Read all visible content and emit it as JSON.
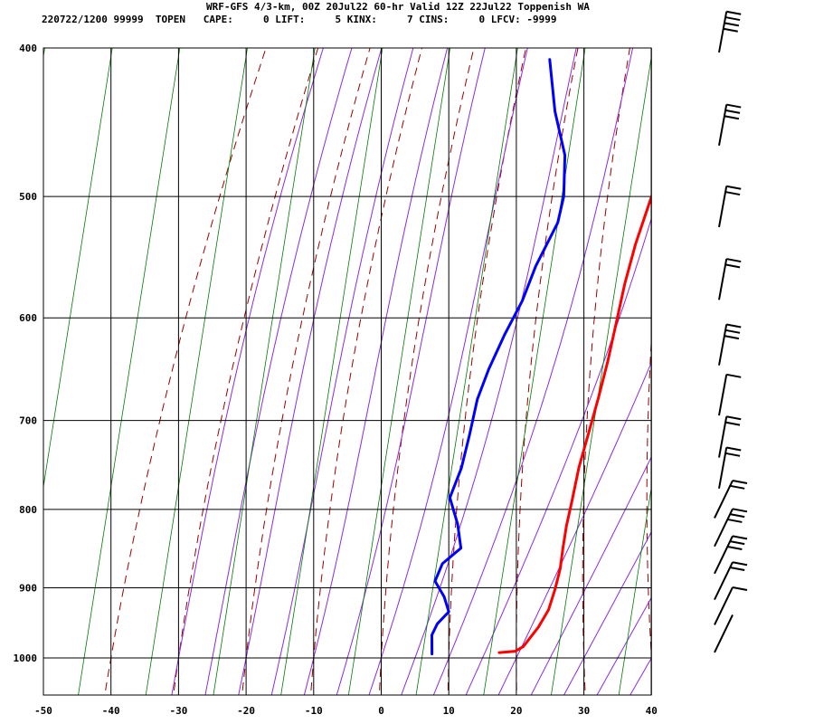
{
  "header": {
    "title": "WRF-GFS 4/3-km, 00Z 20Jul22 60-hr Valid 12Z 22Jul22 Toppenish WA",
    "indices": "220722/1200 99999  TOPEN   CAPE:     0 LIFT:     5 KINX:     7 CINS:     0 LFCV: -9999"
  },
  "chart_data": {
    "type": "line",
    "title": "WRF-GFS 4/3-km, 00Z 20Jul22 60-hr Valid 12Z 22Jul22 Toppenish WA",
    "xlabel": "",
    "ylabel": "",
    "x_ticks": [
      -50,
      -40,
      -30,
      -20,
      -10,
      0,
      10,
      20,
      30,
      40
    ],
    "xlim": [
      -50,
      40
    ],
    "y_ticks": [
      400,
      500,
      600,
      700,
      800,
      900,
      1000
    ],
    "ylim": [
      1040,
      400
    ],
    "y_scale": "log-pressure",
    "grid": true,
    "series": [
      {
        "role": "temperature",
        "color": "#ff0000",
        "points": [
          [
            -26.6,
            405
          ],
          [
            -24,
            440
          ],
          [
            -20.8,
            473
          ],
          [
            -17.6,
            504
          ],
          [
            -14.4,
            537
          ],
          [
            -11,
            570
          ],
          [
            -7.4,
            604
          ],
          [
            -3.8,
            640
          ],
          [
            -0.6,
            676
          ],
          [
            2.4,
            713
          ],
          [
            5.3,
            751
          ],
          [
            8.5,
            790
          ],
          [
            10.8,
            820
          ],
          [
            13.1,
            848
          ],
          [
            15.3,
            875
          ],
          [
            17.1,
            902
          ],
          [
            18.7,
            930
          ],
          [
            19.4,
            955
          ],
          [
            19.6,
            983
          ],
          [
            19,
            990
          ],
          [
            16.8,
            992
          ]
        ]
      },
      {
        "role": "dewpoint",
        "color": "#0000ff",
        "points": [
          [
            -50.3,
            407
          ],
          [
            -43,
            440
          ],
          [
            -36,
            470
          ],
          [
            -31,
            500
          ],
          [
            -28.6,
            520
          ],
          [
            -26.4,
            555
          ],
          [
            -24,
            585
          ],
          [
            -22.4,
            615
          ],
          [
            -20.4,
            648
          ],
          [
            -18.3,
            678
          ],
          [
            -15,
            715
          ],
          [
            -12,
            752
          ],
          [
            -10,
            786
          ],
          [
            -5.5,
            818
          ],
          [
            -2,
            848
          ],
          [
            -2.8,
            868
          ],
          [
            -1.7,
            891
          ],
          [
            1.6,
            912
          ],
          [
            4.2,
            933
          ],
          [
            4,
            950
          ],
          [
            4.6,
            966
          ],
          [
            7,
            994
          ]
        ]
      }
    ],
    "background_lines": {
      "dry_adiabat_color": "#990000",
      "moist_adiabat_color": "#8a2be2",
      "mixing_ratio_color": "#007a00"
    },
    "wind_barbs": {
      "color": "#000000",
      "levels": [
        {
          "pressure": 400,
          "barbs": 4,
          "pennant": false
        },
        {
          "pressure": 460,
          "barbs": 3,
          "pennant": false
        },
        {
          "pressure": 520,
          "barbs": 2,
          "pennant": false
        },
        {
          "pressure": 580,
          "barbs": 2,
          "pennant": false
        },
        {
          "pressure": 640,
          "barbs": 3,
          "pennant": false
        },
        {
          "pressure": 690,
          "barbs": 1,
          "pennant": false
        },
        {
          "pressure": 735,
          "barbs": 2,
          "pennant": false
        },
        {
          "pressure": 770,
          "barbs": 2,
          "pennant": false
        },
        {
          "pressure": 805,
          "barbs": 2,
          "pennant": false
        },
        {
          "pressure": 840,
          "barbs": 3,
          "pennant": false
        },
        {
          "pressure": 875,
          "barbs": 3,
          "pennant": false
        },
        {
          "pressure": 910,
          "barbs": 2,
          "pennant": false
        },
        {
          "pressure": 945,
          "barbs": 1,
          "pennant": false
        },
        {
          "pressure": 985,
          "barbs": 0,
          "pennant": false
        }
      ]
    }
  }
}
